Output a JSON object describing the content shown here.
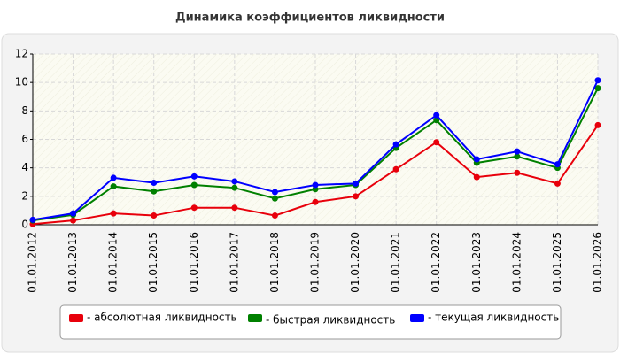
{
  "chart_data": {
    "type": "line",
    "title": "Динамика коэффициентов ликвидности",
    "categories": [
      "01.01.2012",
      "01.01.2013",
      "01.01.2014",
      "01.01.2015",
      "01.01.2016",
      "01.01.2017",
      "01.01.2018",
      "01.01.2019",
      "01.01.2020",
      "01.01.2021",
      "01.01.2022",
      "01.01.2023",
      "01.01.2024",
      "01.01.2025",
      "01.01.2026"
    ],
    "series": [
      {
        "name": "- абсолютная ликвидность",
        "color": "#e8000b",
        "values": [
          0.05,
          0.3,
          0.8,
          0.65,
          1.2,
          1.2,
          0.65,
          1.6,
          2.0,
          3.9,
          5.8,
          3.35,
          3.65,
          2.9,
          7.0
        ]
      },
      {
        "name": "- быстрая ликвидность",
        "color": "#008000",
        "values": [
          0.3,
          0.7,
          2.7,
          2.35,
          2.8,
          2.6,
          1.85,
          2.5,
          2.8,
          5.4,
          7.35,
          4.35,
          4.8,
          4.0,
          9.6
        ]
      },
      {
        "name": "- текущая ликвидность",
        "color": "#0000ff",
        "values": [
          0.35,
          0.8,
          3.3,
          2.95,
          3.4,
          3.05,
          2.3,
          2.8,
          2.9,
          5.65,
          7.7,
          4.6,
          5.15,
          4.25,
          10.15
        ]
      }
    ],
    "ylim": [
      0,
      12
    ],
    "yticks": [
      0,
      2,
      4,
      6,
      8,
      10,
      12
    ],
    "grid": true,
    "legend": "bottom"
  }
}
